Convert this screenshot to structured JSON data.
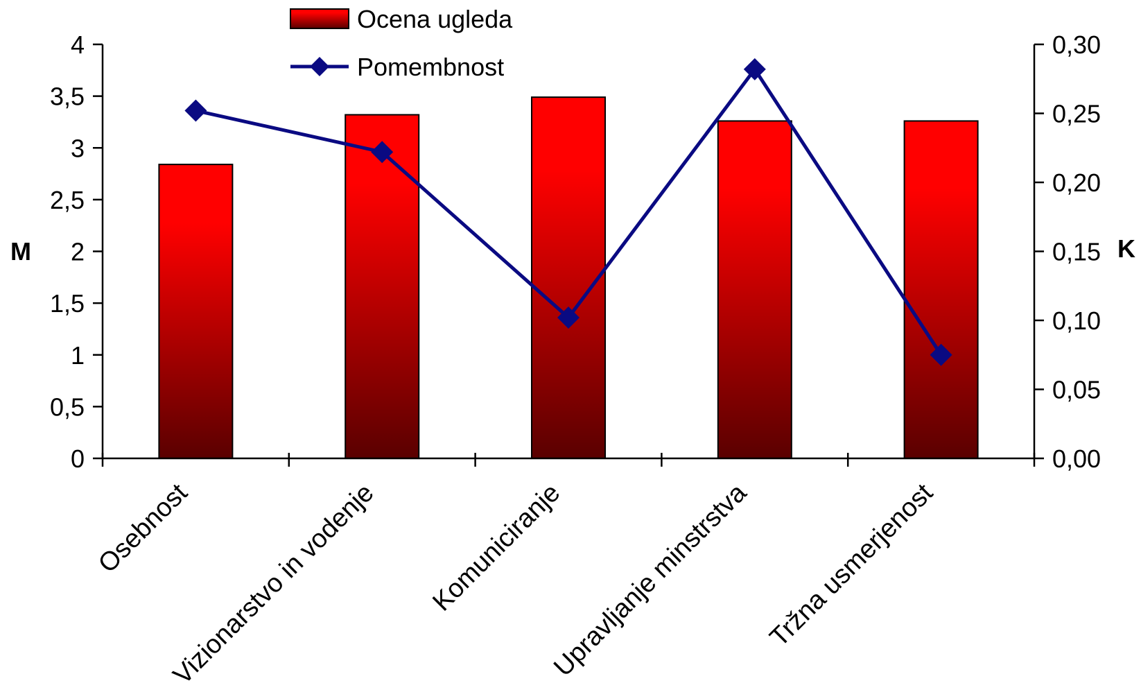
{
  "chart_data": {
    "type": "bar",
    "categories": [
      "Osebnost",
      "Vizionarstvo in vodenje",
      "Komuniciranje",
      "Upravljanje minstrstva",
      "Tržna usmerjenost"
    ],
    "series": [
      {
        "name": "Ocena ugleda",
        "type": "bar",
        "axis": "left",
        "values": [
          2.84,
          3.32,
          3.49,
          3.26,
          3.26
        ]
      },
      {
        "name": "Pomembnost",
        "type": "line",
        "axis": "right",
        "values": [
          0.252,
          0.222,
          0.102,
          0.282,
          0.075
        ]
      }
    ],
    "y_left": {
      "label": "M",
      "lim": [
        0,
        4
      ],
      "ticks": [
        "0",
        "0,5",
        "1",
        "1,5",
        "2",
        "2,5",
        "3",
        "3,5",
        "4"
      ]
    },
    "y_right": {
      "label": "K",
      "lim": [
        0,
        0.3
      ],
      "ticks": [
        "0,00",
        "0,05",
        "0,10",
        "0,15",
        "0,20",
        "0,25",
        "0,30"
      ]
    },
    "legend": "top-center",
    "grid": false,
    "colors": {
      "bar_top": "#ff0000",
      "bar_bottom": "#5a0000",
      "line": "#0a0a82",
      "axis": "#000000"
    }
  }
}
